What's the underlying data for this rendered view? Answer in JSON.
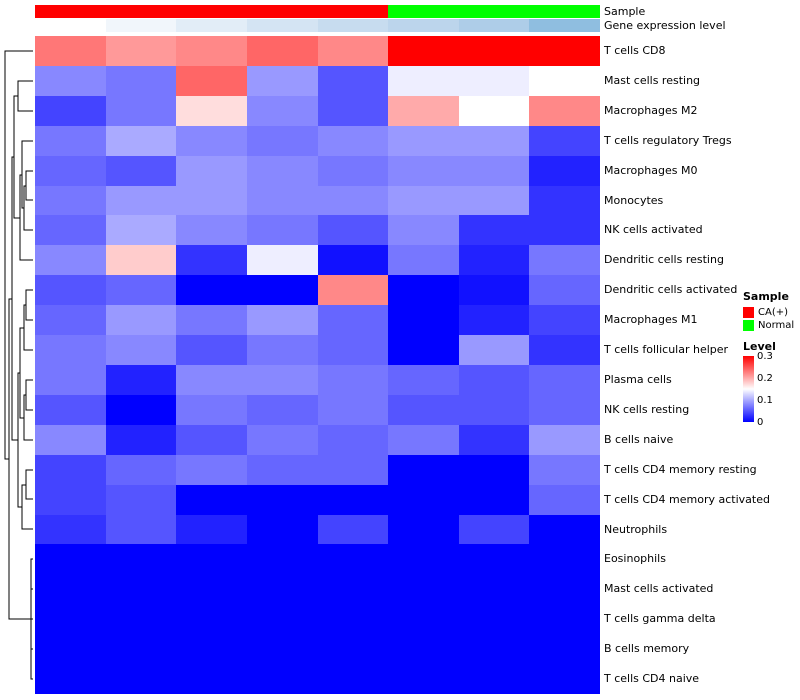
{
  "chart_data": {
    "type": "heatmap",
    "clustered_rows": true,
    "rows": [
      "T cells CD8",
      "Mast cells resting",
      "Macrophages M2",
      "T cells regulatory  Tregs",
      "Macrophages M0",
      "Monocytes",
      "NK cells activated",
      "Dendritic cells resting",
      "Dendritic cells activated",
      "Macrophages M1",
      "T cells follicular helper",
      "Plasma cells",
      "NK cells resting",
      "B cells naive",
      "T cells CD4 memory resting",
      "T cells CD4 memory activated",
      "Neutrophils",
      "Eosinophils",
      "Mast cells activated",
      "T cells gamma delta",
      "B cells memory",
      "T cells CD4 naive"
    ],
    "n_columns": 8,
    "column_groups": [
      "CA(+)",
      "CA(+)",
      "CA(+)",
      "CA(+)",
      "CA(+)",
      "Normal",
      "Normal",
      "Normal"
    ],
    "values": [
      [
        0.23,
        0.21,
        0.22,
        0.24,
        0.22,
        0.3,
        0.3,
        0.3
      ],
      [
        0.08,
        0.07,
        0.24,
        0.09,
        0.05,
        0.14,
        0.14,
        0.15
      ],
      [
        0.04,
        0.07,
        0.17,
        0.08,
        0.05,
        0.2,
        0.15,
        0.22
      ],
      [
        0.07,
        0.1,
        0.08,
        0.07,
        0.08,
        0.09,
        0.09,
        0.04
      ],
      [
        0.06,
        0.05,
        0.09,
        0.08,
        0.07,
        0.08,
        0.08,
        0.02
      ],
      [
        0.07,
        0.09,
        0.09,
        0.08,
        0.08,
        0.09,
        0.09,
        0.03
      ],
      [
        0.06,
        0.1,
        0.08,
        0.07,
        0.05,
        0.08,
        0.03,
        0.03
      ],
      [
        0.08,
        0.18,
        0.03,
        0.14,
        0.01,
        0.07,
        0.02,
        0.07
      ],
      [
        0.05,
        0.06,
        0.0,
        0.0,
        0.22,
        0.0,
        0.01,
        0.06
      ],
      [
        0.06,
        0.09,
        0.07,
        0.09,
        0.06,
        0.0,
        0.02,
        0.04
      ],
      [
        0.07,
        0.08,
        0.05,
        0.07,
        0.06,
        0.0,
        0.09,
        0.03
      ],
      [
        0.07,
        0.02,
        0.08,
        0.08,
        0.07,
        0.06,
        0.05,
        0.06
      ],
      [
        0.05,
        0.0,
        0.07,
        0.06,
        0.07,
        0.05,
        0.05,
        0.06
      ],
      [
        0.08,
        0.02,
        0.05,
        0.07,
        0.06,
        0.07,
        0.03,
        0.09
      ],
      [
        0.04,
        0.06,
        0.07,
        0.06,
        0.06,
        0.0,
        0.0,
        0.07
      ],
      [
        0.04,
        0.05,
        0.0,
        0.0,
        0.0,
        0.0,
        0.0,
        0.06
      ],
      [
        0.03,
        0.05,
        0.02,
        0.0,
        0.04,
        0.0,
        0.04,
        0.0
      ],
      [
        0.0,
        0.0,
        0.0,
        0.0,
        0.0,
        0.0,
        0.0,
        0.0
      ],
      [
        0.0,
        0.0,
        0.0,
        0.0,
        0.0,
        0.0,
        0.0,
        0.0
      ],
      [
        0.0,
        0.0,
        0.0,
        0.0,
        0.0,
        0.0,
        0.0,
        0.0
      ],
      [
        0.0,
        0.0,
        0.0,
        0.0,
        0.0,
        0.0,
        0.0,
        0.0
      ],
      [
        0.0,
        0.0,
        0.0,
        0.0,
        0.0,
        0.0,
        0.0,
        0.0
      ]
    ],
    "colorscale": {
      "min": 0,
      "mid": 0.15,
      "max": 0.3,
      "min_color": "#0000FF",
      "mid_color": "#FFFFFF",
      "max_color": "#FF0000"
    },
    "annotations": {
      "sample": {
        "label": "Sample",
        "colors": {
          "CA(+)": "#FF0000",
          "Normal": "#00FF00"
        }
      },
      "gene_expression": {
        "label": "Gene expression level",
        "colors": [
          "#FFFFFF",
          "#F1F6FB",
          "#E2EDF7",
          "#D4E4F3",
          "#C7DCEF",
          "#BCD5EC",
          "#AECDE8",
          "#8FBEE0"
        ]
      }
    },
    "legend": {
      "sample_title": "Sample",
      "sample_items": [
        {
          "label": "CA(+)",
          "color": "#FF0000"
        },
        {
          "label": "Normal",
          "color": "#00FF00"
        }
      ],
      "level_title": "Level",
      "level_ticks": [
        "0.3",
        "0.2",
        "0.1",
        "0"
      ]
    }
  }
}
